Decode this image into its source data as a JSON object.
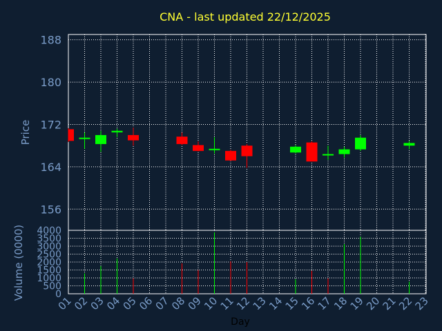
{
  "title": "CNA - last updated 22/12/2025",
  "colors": {
    "background": "#0f1e30",
    "frame": "#ffffff",
    "grid": "#ffffff",
    "up": "#00ff00",
    "down": "#ff0000",
    "title": "#ffff33",
    "tick_text": "#7a9cc8",
    "xlabel_text": "#000000"
  },
  "chart_data": [
    {
      "type": "candlestick",
      "ylabel": "Price",
      "ylim": [
        152,
        189
      ],
      "yticks": [
        188,
        180,
        172,
        164,
        156
      ],
      "x_ticks": [
        "01",
        "02",
        "03",
        "04",
        "05",
        "06",
        "07",
        "08",
        "09",
        "10",
        "11",
        "12",
        "13",
        "14",
        "15",
        "16",
        "17",
        "18",
        "19",
        "20",
        "21",
        "22",
        "23"
      ],
      "candles": [
        {
          "day": "01",
          "open": 171.1,
          "high": 171.3,
          "low": 168.7,
          "close": 168.9
        },
        {
          "day": "02",
          "open": 169.3,
          "high": 170.5,
          "low": 167.4,
          "close": 169.5
        },
        {
          "day": "03",
          "open": 168.3,
          "high": 170.8,
          "low": 166.8,
          "close": 170.0
        },
        {
          "day": "04",
          "open": 170.5,
          "high": 171.2,
          "low": 169.6,
          "close": 170.8
        },
        {
          "day": "05",
          "open": 170.0,
          "high": 171.4,
          "low": 168.0,
          "close": 169.0
        },
        {
          "day": "08",
          "open": 169.7,
          "high": 170.5,
          "low": 168.1,
          "close": 168.3
        },
        {
          "day": "09",
          "open": 168.1,
          "high": 168.8,
          "low": 166.9,
          "close": 167.0
        },
        {
          "day": "10",
          "open": 167.3,
          "high": 169.6,
          "low": 166.5,
          "close": 167.4
        },
        {
          "day": "11",
          "open": 167.0,
          "high": 167.2,
          "low": 165.1,
          "close": 165.2
        },
        {
          "day": "12",
          "open": 168.0,
          "high": 168.3,
          "low": 163.8,
          "close": 166.0
        },
        {
          "day": "15",
          "open": 166.7,
          "high": 168.1,
          "low": 166.5,
          "close": 167.8
        },
        {
          "day": "16",
          "open": 168.6,
          "high": 168.8,
          "low": 165.0,
          "close": 165.0
        },
        {
          "day": "17",
          "open": 166.2,
          "high": 168.0,
          "low": 165.3,
          "close": 166.4
        },
        {
          "day": "18",
          "open": 166.4,
          "high": 167.8,
          "low": 165.7,
          "close": 167.3
        },
        {
          "day": "19",
          "open": 167.3,
          "high": 170.0,
          "low": 167.0,
          "close": 169.5
        },
        {
          "day": "22",
          "open": 168.0,
          "high": 168.9,
          "low": 167.3,
          "close": 168.5
        }
      ]
    },
    {
      "type": "bar",
      "xlabel": "Day",
      "ylabel": "Volume (0000)",
      "ylim": [
        0,
        4000
      ],
      "yticks": [
        4000,
        3500,
        3000,
        2500,
        2000,
        1500,
        1000,
        500,
        0
      ],
      "bars": [
        {
          "day": "02",
          "value": 1280,
          "direction": "up"
        },
        {
          "day": "03",
          "value": 1750,
          "direction": "up"
        },
        {
          "day": "04",
          "value": 2230,
          "direction": "up"
        },
        {
          "day": "05",
          "value": 980,
          "direction": "down"
        },
        {
          "day": "08",
          "value": 1920,
          "direction": "down"
        },
        {
          "day": "09",
          "value": 1500,
          "direction": "down"
        },
        {
          "day": "10",
          "value": 3870,
          "direction": "up"
        },
        {
          "day": "11",
          "value": 2050,
          "direction": "down"
        },
        {
          "day": "12",
          "value": 2000,
          "direction": "down"
        },
        {
          "day": "15",
          "value": 920,
          "direction": "up"
        },
        {
          "day": "16",
          "value": 1450,
          "direction": "down"
        },
        {
          "day": "17",
          "value": 980,
          "direction": "down"
        },
        {
          "day": "18",
          "value": 3130,
          "direction": "up"
        },
        {
          "day": "19",
          "value": 3600,
          "direction": "up"
        },
        {
          "day": "22",
          "value": 760,
          "direction": "up"
        }
      ]
    }
  ]
}
